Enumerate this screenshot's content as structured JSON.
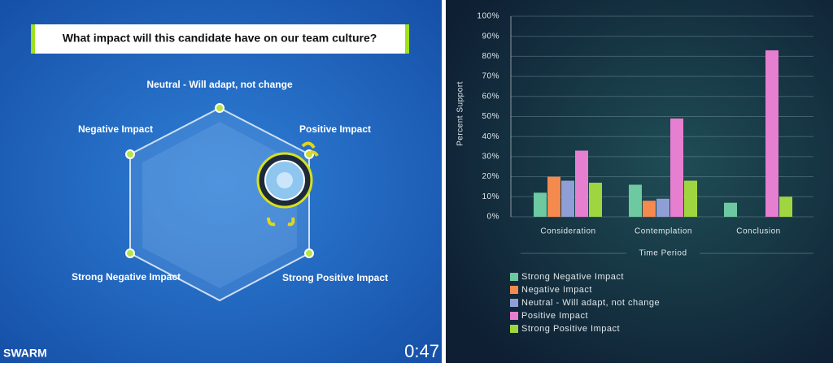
{
  "swarm": {
    "question": "What impact will this candidate have on our team culture?",
    "options": [
      "Neutral - Will adapt, not change",
      "Negative Impact",
      "Positive Impact",
      "Strong Negative Impact",
      "Strong Positive Impact"
    ],
    "brand": "SWARM",
    "timer": "0:47"
  },
  "chart_data": {
    "type": "bar",
    "categories": [
      "Consideration",
      "Contemplation",
      "Conclusion"
    ],
    "series": [
      {
        "name": "Strong Negative Impact",
        "color": "#6cc9a0",
        "values": [
          12,
          16,
          7
        ]
      },
      {
        "name": "Negative Impact",
        "color": "#f58a4f",
        "values": [
          20,
          8,
          0
        ]
      },
      {
        "name": "Neutral - Will adapt, not change",
        "color": "#8f9fd6",
        "values": [
          18,
          9,
          0
        ]
      },
      {
        "name": "Positive Impact",
        "color": "#e67fcf",
        "values": [
          33,
          49,
          83
        ]
      },
      {
        "name": "Strong Positive Impact",
        "color": "#9fd63f",
        "values": [
          17,
          18,
          10
        ]
      }
    ],
    "xlabel": "Time Period",
    "ylabel": "Percent Support",
    "ylim": [
      0,
      100
    ],
    "yticks": [
      {
        "value": 0,
        "label": "0%"
      },
      {
        "value": 10,
        "label": "10%"
      },
      {
        "value": 20,
        "label": "20%"
      },
      {
        "value": 30,
        "label": "30%"
      },
      {
        "value": 40,
        "label": "40%"
      },
      {
        "value": 50,
        "label": "50%"
      },
      {
        "value": 60,
        "label": "60%"
      },
      {
        "value": 70,
        "label": "70%"
      },
      {
        "value": 80,
        "label": "80%"
      },
      {
        "value": 90,
        "label": "90%"
      },
      {
        "value": 100,
        "label": "100%"
      }
    ],
    "grid": true
  }
}
